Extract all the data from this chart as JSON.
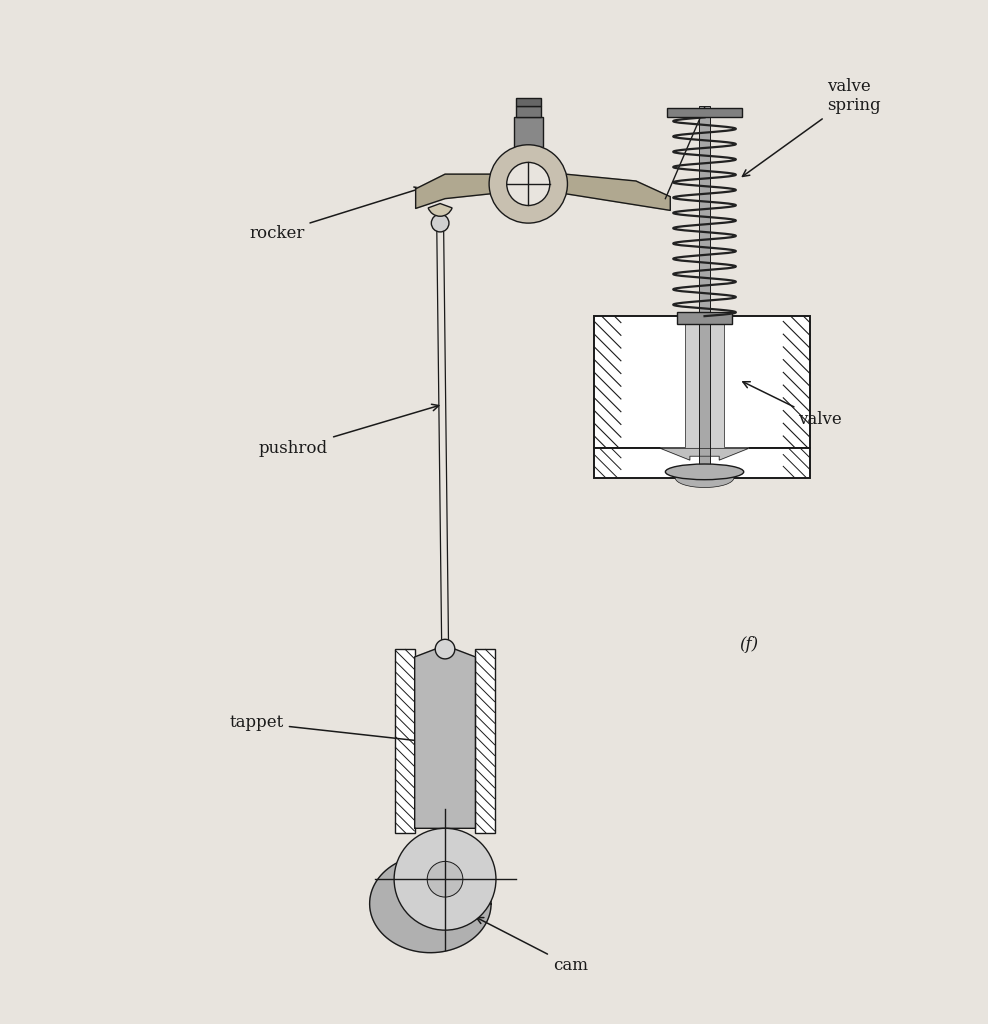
{
  "bg_color": "#e8e4de",
  "line_color": "#1a1a1a",
  "fill_gray_dark": "#888888",
  "fill_gray_mid": "#aaaaaa",
  "fill_gray_light": "#cccccc",
  "fill_rocker": "#b0a890",
  "hatch_bg": "#ffffff",
  "labels": {
    "rocker": "rocker",
    "pushrod": "pushrod",
    "tappet": "tappet",
    "cam": "cam",
    "valve": "valve",
    "valve_spring": "valve\nspring",
    "f_label": "(f)"
  },
  "label_fontsize": 12,
  "figsize": [
    9.88,
    10.24
  ],
  "dpi": 100
}
